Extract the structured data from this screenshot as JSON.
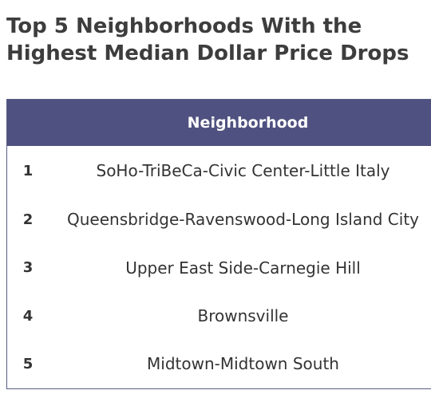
{
  "title": "Top 5 Neighborhoods With the Highest Median Dollar Price Drops",
  "accent_color": "#4f5180",
  "chart_data": {
    "type": "table",
    "title": "Top 5 Neighborhoods With the Highest Median Dollar Price Drops",
    "columns": [
      "",
      "Neighborhood"
    ],
    "rows": [
      {
        "rank": "1",
        "neighborhood": "SoHo-TriBeCa-Civic Center-Little Italy"
      },
      {
        "rank": "2",
        "neighborhood": "Queensbridge-Ravenswood-Long Island City"
      },
      {
        "rank": "3",
        "neighborhood": "Upper East Side-Carnegie Hill"
      },
      {
        "rank": "4",
        "neighborhood": "Brownsville"
      },
      {
        "rank": "5",
        "neighborhood": "Midtown-Midtown South"
      }
    ]
  }
}
